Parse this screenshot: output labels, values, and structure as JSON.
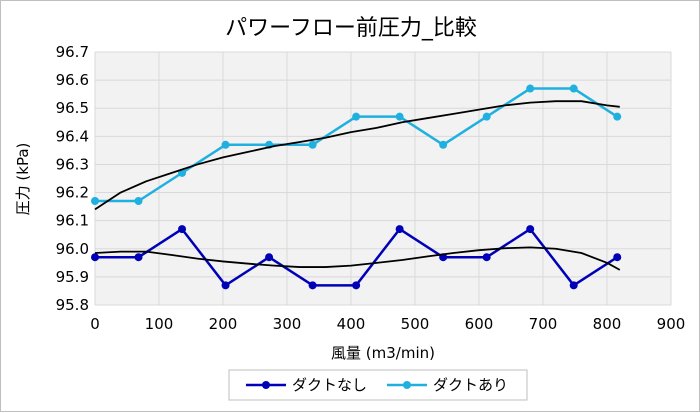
{
  "chart_data": {
    "type": "line",
    "title": "パワーフロー前圧力_比較",
    "xlabel": "風量 (m3/min)",
    "ylabel": "圧力 (kPa)",
    "xlim": [
      0,
      900
    ],
    "ylim": [
      95.8,
      96.7
    ],
    "x_ticks": [
      "0",
      "100",
      "200",
      "300",
      "400",
      "500",
      "600",
      "700",
      "800",
      "900"
    ],
    "y_ticks": [
      "96.7",
      "96.6",
      "96.5",
      "96.4",
      "96.3",
      "96.2",
      "96.1",
      "96.0",
      "95.9",
      "95.8"
    ],
    "grid": true,
    "legend_position": "bottom",
    "series": [
      {
        "name": "ダクトなし",
        "color": "#0000b8",
        "x": [
          0,
          68,
          136,
          204,
          272,
          340,
          408,
          476,
          544,
          612,
          680,
          748,
          816
        ],
        "y": [
          95.97,
          95.97,
          96.07,
          95.87,
          95.97,
          95.87,
          95.87,
          96.07,
          95.97,
          95.97,
          96.07,
          95.87,
          95.97
        ]
      },
      {
        "name": "ダクトあり",
        "color": "#1fb0e0",
        "x": [
          0,
          68,
          136,
          204,
          272,
          340,
          408,
          476,
          544,
          612,
          680,
          748,
          816
        ],
        "y": [
          96.17,
          96.17,
          96.27,
          96.37,
          96.37,
          96.37,
          96.47,
          96.47,
          96.37,
          96.47,
          96.57,
          96.57,
          96.47
        ]
      }
    ],
    "trendlines": [
      {
        "color": "#000000",
        "x": [
          0,
          40,
          80,
          120,
          160,
          200,
          240,
          280,
          320,
          360,
          400,
          440,
          480,
          520,
          560,
          600,
          640,
          680,
          720,
          760,
          800,
          820
        ],
        "y": [
          95.985,
          95.99,
          95.99,
          95.978,
          95.965,
          95.955,
          95.947,
          95.94,
          95.935,
          95.935,
          95.94,
          95.95,
          95.96,
          95.973,
          95.985,
          95.995,
          96.002,
          96.005,
          96.0,
          95.985,
          95.95,
          95.925
        ]
      },
      {
        "color": "#000000",
        "x": [
          0,
          40,
          80,
          120,
          160,
          200,
          240,
          280,
          320,
          360,
          400,
          440,
          480,
          520,
          560,
          600,
          640,
          680,
          720,
          760,
          800,
          820
        ],
        "y": [
          96.14,
          96.2,
          96.24,
          96.27,
          96.3,
          96.325,
          96.345,
          96.365,
          96.38,
          96.395,
          96.415,
          96.43,
          96.45,
          96.465,
          96.48,
          96.495,
          96.51,
          96.52,
          96.525,
          96.525,
          96.51,
          96.505
        ]
      }
    ]
  }
}
